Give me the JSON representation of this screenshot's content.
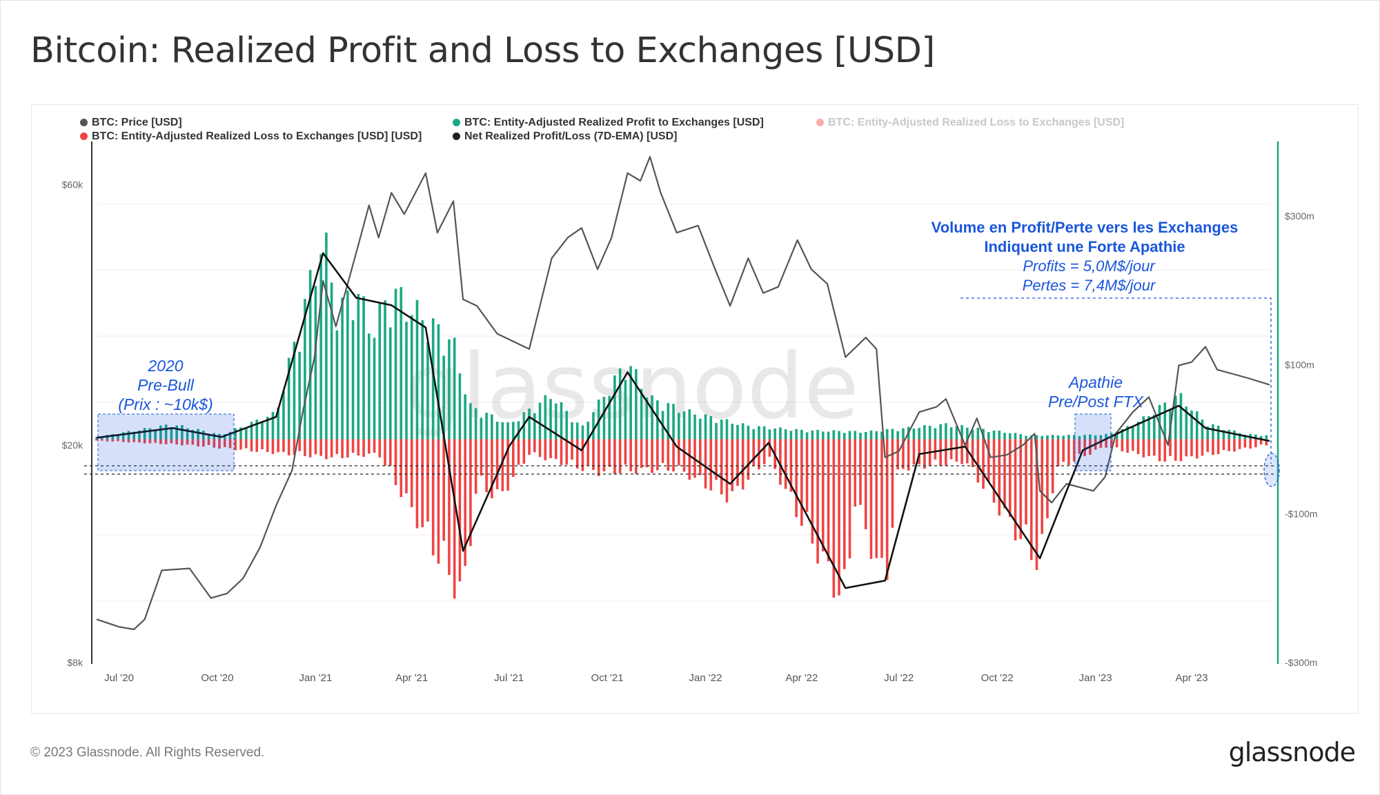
{
  "title": "Bitcoin: Realized Profit and Loss to Exchanges [USD]",
  "footer": {
    "copyright": "© 2023 Glassnode. All Rights Reserved.",
    "brand": "glassnode"
  },
  "watermark": "glassnode",
  "colors": {
    "price": "#555555",
    "profit": "#1aa883",
    "loss": "#ee4444",
    "net": "#111111",
    "annotation": "#1a56db",
    "axis_right": "#1aa883"
  },
  "legend": [
    {
      "label": "BTC: Price [USD]",
      "color": "#555555",
      "faded": false
    },
    {
      "label": "BTC: Entity-Adjusted Realized Profit to Exchanges [USD]",
      "color": "#1aa883",
      "faded": false
    },
    {
      "label": "BTC: Entity-Adjusted Realized Loss to Exchanges [USD]",
      "color": "#ee4444",
      "faded": true
    },
    {
      "label": "BTC: Entity-Adjusted Realized Loss to Exchanges [USD] [USD]",
      "color": "#ee4444",
      "faded": false
    },
    {
      "label": "Net Realized Profit/Loss (7D-EMA) [USD]",
      "color": "#222222",
      "faded": false
    }
  ],
  "annotations": {
    "prebull": [
      "2020",
      "Pre-Bull",
      "(Prix : ~10k$)"
    ],
    "apathie": [
      "Apathie",
      "Pre/Post FTX"
    ],
    "volume_bold": [
      "Volume en Profit/Perte vers les Exchanges",
      "Indiquent une Forte Apathie"
    ],
    "volume_italic": [
      "Profits = 5,0M$/jour",
      "Pertes = 7,4M$/jour"
    ]
  },
  "chart_data": {
    "type": "line",
    "x_range": [
      "2020-06-10",
      "2023-06-13"
    ],
    "x_ticks": [
      "Jul '20",
      "Oct '20",
      "Jan '21",
      "Apr '21",
      "Jul '21",
      "Oct '21",
      "Jan '22",
      "Apr '22",
      "Jul '22",
      "Oct '22",
      "Jan '23",
      "Apr '23"
    ],
    "y_left": {
      "label": "",
      "scale": "log",
      "range": [
        8000,
        72000
      ],
      "ticks": [
        "$8k",
        "$20k",
        "$60k"
      ]
    },
    "y_right": {
      "label": "",
      "scale": "linear",
      "range": [
        -300000000,
        400000000
      ],
      "ticks": [
        "$300m",
        "$100m",
        "-$100m",
        "-$300m"
      ]
    },
    "series": [
      {
        "name": "BTC: Price [USD]",
        "x": [
          "2020-06-10",
          "2020-07-01",
          "2020-07-15",
          "2020-07-25",
          "2020-08-10",
          "2020-09-05",
          "2020-09-25",
          "2020-10-10",
          "2020-10-25",
          "2020-11-10",
          "2020-11-25",
          "2020-12-10",
          "2020-12-20",
          "2020-12-31",
          "2021-01-08",
          "2021-01-20",
          "2021-02-08",
          "2021-02-20",
          "2021-03-01",
          "2021-03-13",
          "2021-03-25",
          "2021-04-14",
          "2021-04-25",
          "2021-05-10",
          "2021-05-19",
          "2021-06-01",
          "2021-06-20",
          "2021-07-20",
          "2021-08-10",
          "2021-08-25",
          "2021-09-07",
          "2021-09-22",
          "2021-10-05",
          "2021-10-20",
          "2021-11-01",
          "2021-11-10",
          "2021-11-20",
          "2021-12-05",
          "2021-12-25",
          "2022-01-10",
          "2022-01-24",
          "2022-02-10",
          "2022-02-24",
          "2022-03-10",
          "2022-03-28",
          "2022-04-10",
          "2022-04-25",
          "2022-05-12",
          "2022-05-31",
          "2022-06-10",
          "2022-06-18",
          "2022-07-01",
          "2022-07-20",
          "2022-08-05",
          "2022-08-14",
          "2022-09-01",
          "2022-09-12",
          "2022-09-25",
          "2022-10-10",
          "2022-10-25",
          "2022-11-05",
          "2022-11-10",
          "2022-11-21",
          "2022-12-05",
          "2022-12-30",
          "2023-01-10",
          "2023-01-20",
          "2023-02-05",
          "2023-02-20",
          "2023-03-10",
          "2023-03-20",
          "2023-04-01",
          "2023-04-14",
          "2023-04-25",
          "2023-05-10",
          "2023-05-25",
          "2023-06-13"
        ],
        "y": [
          9600,
          9300,
          9200,
          9600,
          11800,
          11900,
          10500,
          10700,
          11400,
          13000,
          15500,
          18000,
          23000,
          29000,
          40000,
          33000,
          45000,
          55000,
          48000,
          58000,
          53000,
          63000,
          49000,
          56000,
          37000,
          36000,
          32000,
          30000,
          44000,
          48000,
          50000,
          42000,
          48000,
          63000,
          61000,
          67500,
          58000,
          49000,
          50500,
          42000,
          36000,
          44000,
          38000,
          39000,
          47500,
          42000,
          39500,
          29000,
          31500,
          30000,
          19000,
          19500,
          23000,
          23500,
          24300,
          20000,
          22400,
          19000,
          19200,
          20000,
          21000,
          16500,
          15700,
          17000,
          16500,
          17500,
          21000,
          23000,
          24500,
          20000,
          28000,
          28400,
          30300,
          27500,
          27000,
          26500,
          25800
        ],
        "color": "#555555"
      },
      {
        "name": "BTC: Entity-Adjusted Realized Profit to Exchanges [USD]",
        "x": [
          "2020-06-10",
          "2020-08-20",
          "2020-10-05",
          "2020-11-25",
          "2021-01-08",
          "2021-01-22",
          "2021-02-08",
          "2021-02-22",
          "2021-03-13",
          "2021-04-14",
          "2021-05-10",
          "2021-05-25",
          "2021-07-01",
          "2021-08-10",
          "2021-09-07",
          "2021-10-20",
          "2021-11-10",
          "2021-12-20",
          "2022-02-10",
          "2022-04-01",
          "2022-06-01",
          "2022-08-14",
          "2022-11-01",
          "2023-01-10",
          "2023-01-25",
          "2023-02-15",
          "2023-03-20",
          "2023-04-14",
          "2023-05-20",
          "2023-06-13"
        ],
        "y": [
          3000000,
          20000000,
          6000000,
          35000000,
          275000000,
          170000000,
          205000000,
          145000000,
          200000000,
          160000000,
          130000000,
          45000000,
          20000000,
          60000000,
          15000000,
          105000000,
          55000000,
          35000000,
          18000000,
          12000000,
          10000000,
          20000000,
          5000000,
          6000000,
          12000000,
          28000000,
          60000000,
          22000000,
          7000000,
          5000000
        ],
        "color": "#1aa883"
      },
      {
        "name": "BTC: Entity-Adjusted Realized Loss to Exchanges [USD] [USD]",
        "x": [
          "2020-06-10",
          "2020-09-05",
          "2021-01-15",
          "2021-03-01",
          "2021-05-19",
          "2021-06-01",
          "2021-06-22",
          "2021-07-20",
          "2021-09-22",
          "2021-12-05",
          "2022-01-24",
          "2022-03-01",
          "2022-05-12",
          "2022-05-20",
          "2022-06-18",
          "2022-07-01",
          "2022-09-01",
          "2022-11-10",
          "2022-11-25",
          "2023-01-10",
          "2023-03-10",
          "2023-06-13"
        ],
        "y": [
          -2000000,
          -8000000,
          -25000000,
          -20000000,
          -215000000,
          -60000000,
          -80000000,
          -20000000,
          -45000000,
          -40000000,
          -80000000,
          -25000000,
          -225000000,
          -80000000,
          -200000000,
          -40000000,
          -30000000,
          -170000000,
          -40000000,
          -10000000,
          -30000000,
          -7400000
        ],
        "color": "#ee4444"
      },
      {
        "name": "Net Realized Profit/Loss (7D-EMA) [USD]",
        "x": [
          "2020-06-10",
          "2020-08-20",
          "2020-10-05",
          "2020-11-25",
          "2021-01-08",
          "2021-02-08",
          "2021-03-13",
          "2021-04-14",
          "2021-05-19",
          "2021-06-22",
          "2021-07-01",
          "2021-07-20",
          "2021-09-07",
          "2021-10-20",
          "2021-12-05",
          "2022-01-24",
          "2022-03-01",
          "2022-05-12",
          "2022-06-18",
          "2022-07-20",
          "2022-09-01",
          "2022-11-10",
          "2022-12-20",
          "2023-01-25",
          "2023-03-20",
          "2023-04-14",
          "2023-06-13"
        ],
        "y": [
          2000000,
          15000000,
          3000000,
          30000000,
          250000000,
          190000000,
          180000000,
          150000000,
          -150000000,
          -40000000,
          -10000000,
          30000000,
          -15000000,
          90000000,
          -10000000,
          -60000000,
          -5000000,
          -200000000,
          -190000000,
          -20000000,
          -10000000,
          -160000000,
          -15000000,
          10000000,
          45000000,
          15000000,
          -2400000
        ],
        "color": "#111111"
      }
    ]
  }
}
